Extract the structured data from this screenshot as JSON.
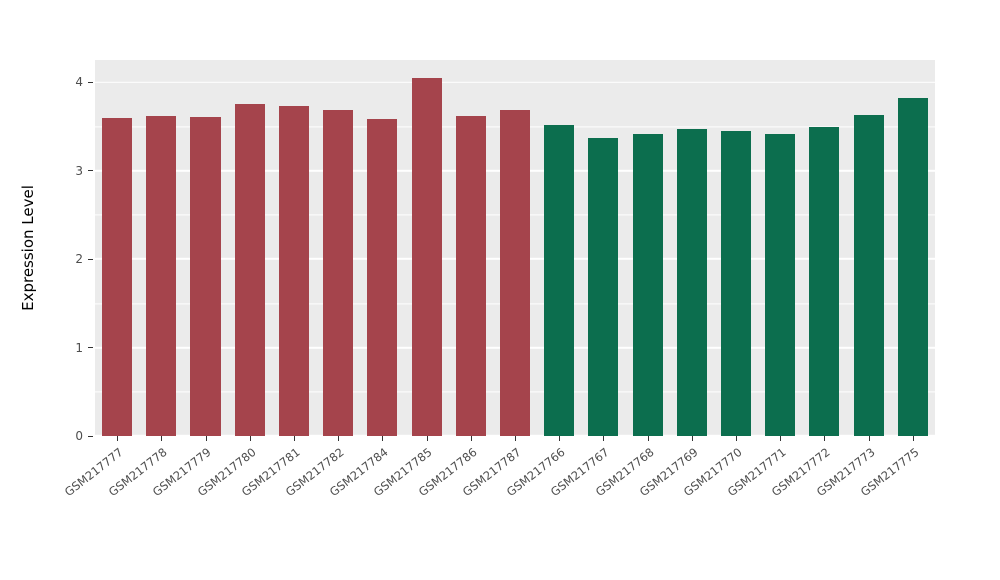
{
  "chart_data": {
    "type": "bar",
    "title": "",
    "xlabel": "",
    "ylabel": "Expression Level",
    "ylim": [
      0,
      4.25
    ],
    "yticks": [
      0,
      1,
      2,
      3,
      4
    ],
    "yticks_minor": [
      0.5,
      1.5,
      2.5,
      3.5
    ],
    "grid": "major and minor horizontal white lines on gray panel",
    "legend_position": "none",
    "panel_background": "#EBEBEB",
    "grid_color": "#FFFFFF",
    "categories": [
      "GSM217777",
      "GSM217778",
      "GSM217779",
      "GSM217780",
      "GSM217781",
      "GSM217782",
      "GSM217784",
      "GSM217785",
      "GSM217786",
      "GSM217787",
      "GSM217766",
      "GSM217767",
      "GSM217768",
      "GSM217769",
      "GSM217770",
      "GSM217771",
      "GSM217772",
      "GSM217773",
      "GSM217775"
    ],
    "values": [
      3.6,
      3.62,
      3.61,
      3.75,
      3.73,
      3.68,
      3.58,
      4.05,
      3.62,
      3.68,
      3.52,
      3.37,
      3.41,
      3.47,
      3.45,
      3.41,
      3.49,
      3.63,
      3.82
    ],
    "bar_groups": [
      0,
      0,
      0,
      0,
      0,
      0,
      0,
      0,
      0,
      0,
      1,
      1,
      1,
      1,
      1,
      1,
      1,
      1,
      1
    ],
    "group_colors": [
      "#A5444C",
      "#0C6E4E"
    ]
  }
}
